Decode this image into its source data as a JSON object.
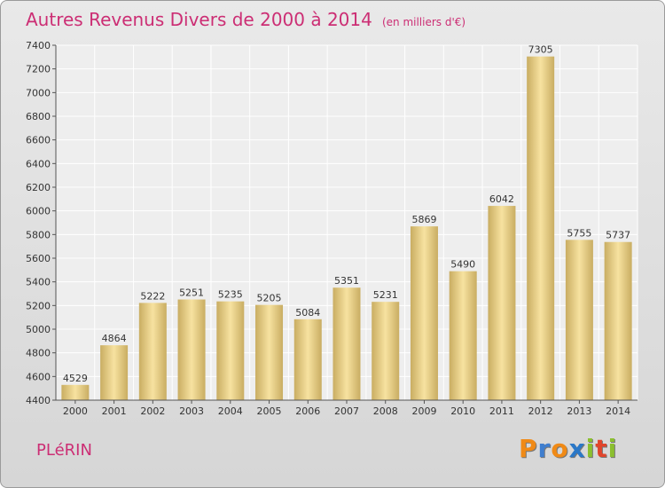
{
  "chart_data": {
    "type": "bar",
    "title": "Autres Revenus Divers de 2000 à 2014",
    "subtitle": "(en milliers d'€)",
    "categories": [
      "2000",
      "2001",
      "2002",
      "2003",
      "2004",
      "2005",
      "2006",
      "2007",
      "2008",
      "2009",
      "2010",
      "2011",
      "2012",
      "2013",
      "2014"
    ],
    "values": [
      4529,
      4864,
      5222,
      5251,
      5235,
      5205,
      5084,
      5351,
      5231,
      5869,
      5490,
      6042,
      7305,
      5755,
      5737
    ],
    "ylim": [
      4400,
      7400
    ],
    "yticks": [
      4400,
      4600,
      4800,
      5000,
      5200,
      5400,
      5600,
      5800,
      6000,
      6200,
      6400,
      6600,
      6800,
      7000,
      7200,
      7400
    ],
    "grid": true,
    "bar_color_light": "#f7e2a0",
    "bar_color_dark": "#c9ad62"
  },
  "city": "PLéRIN",
  "logo": {
    "letters": [
      "P",
      "r",
      "o",
      "x",
      "i",
      "t",
      "i"
    ],
    "colors": [
      "#f08a16",
      "#3f7ecf",
      "#f08a16",
      "#2a78c8",
      "#8bbf2f",
      "#e0452c",
      "#8bbf2f"
    ]
  },
  "title_color": "#cc2e74"
}
